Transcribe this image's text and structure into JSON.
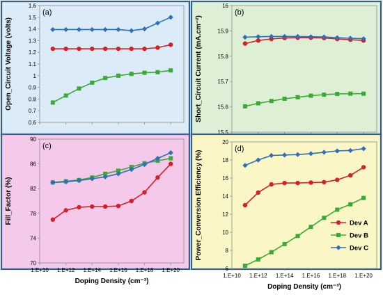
{
  "colors": {
    "dev_a": "#d42027",
    "dev_b": "#3aaa35",
    "dev_c": "#2e6fb7",
    "frame": "#2f5f8a"
  },
  "chart_data": [
    {
      "type": "line",
      "panel_label": "(a)",
      "ylabel": "Open_Circuit Voltage (volts)",
      "xlabel": "",
      "ylim": [
        0.6,
        1.6
      ],
      "ticks": [
        "0.6",
        "0.7",
        "0.8",
        "0.9",
        "1",
        "1.1",
        "1.2",
        "1.3",
        "1.4",
        "1.5",
        "1.6"
      ],
      "background": "#dcebf8",
      "series": [
        {
          "name": "Dev A",
          "x": [
            100000000000.0,
            1000000000000.0,
            10000000000000.0,
            100000000000000.0,
            1000000000000000.0,
            1e+16,
            1e+17,
            1e+18,
            1e+19,
            1e+20
          ],
          "values": [
            1.23,
            1.23,
            1.23,
            1.23,
            1.23,
            1.23,
            1.23,
            1.23,
            1.24,
            1.265
          ]
        },
        {
          "name": "Dev B",
          "x": [
            100000000000.0,
            1000000000000.0,
            10000000000000.0,
            100000000000000.0,
            1000000000000000.0,
            1e+16,
            1e+17,
            1e+18,
            1e+19,
            1e+20
          ],
          "values": [
            0.77,
            0.83,
            0.89,
            0.94,
            0.98,
            1.0,
            1.015,
            1.025,
            1.03,
            1.045
          ]
        },
        {
          "name": "Dev C",
          "x": [
            100000000000.0,
            1000000000000.0,
            10000000000000.0,
            100000000000000.0,
            1000000000000000.0,
            1e+16,
            1e+17,
            1e+18,
            1e+19,
            1e+20
          ],
          "values": [
            1.395,
            1.395,
            1.395,
            1.395,
            1.395,
            1.395,
            1.385,
            1.4,
            1.45,
            1.5
          ]
        }
      ]
    },
    {
      "type": "line",
      "panel_label": "(b)",
      "ylabel": "Short_Circuit Current (mA.cm⁻²)",
      "xlabel": "",
      "ylim": [
        15.5,
        16.0
      ],
      "ticks": [
        "15.5",
        "15.6",
        "15.7",
        "15.8",
        "15.9",
        "16"
      ],
      "background": "#ddf0d6",
      "series": [
        {
          "name": "Dev A",
          "x": [
            100000000000.0,
            1000000000000.0,
            10000000000000.0,
            100000000000000.0,
            1000000000000000.0,
            1e+16,
            1e+17,
            1e+18,
            1e+19,
            1e+20
          ],
          "values": [
            15.85,
            15.862,
            15.868,
            15.872,
            15.873,
            15.873,
            15.872,
            15.868,
            15.865,
            15.862
          ]
        },
        {
          "name": "Dev B",
          "x": [
            100000000000.0,
            1000000000000.0,
            10000000000000.0,
            100000000000000.0,
            1000000000000000.0,
            1e+16,
            1e+17,
            1e+18,
            1e+19,
            1e+20
          ],
          "values": [
            15.602,
            15.614,
            15.623,
            15.632,
            15.638,
            15.644,
            15.648,
            15.651,
            15.652,
            15.652
          ]
        },
        {
          "name": "Dev C",
          "x": [
            100000000000.0,
            1000000000000.0,
            10000000000000.0,
            100000000000000.0,
            1000000000000000.0,
            1e+16,
            1e+17,
            1e+18,
            1e+19,
            1e+20
          ],
          "values": [
            15.875,
            15.877,
            15.878,
            15.878,
            15.878,
            15.877,
            15.876,
            15.873,
            15.871,
            15.869
          ]
        }
      ]
    },
    {
      "type": "line",
      "panel_label": "(c)",
      "ylabel": "Fill_Factor (%)",
      "xlabel": "Doping Density (cm⁻³)",
      "ylim": [
        70,
        90
      ],
      "ticks": [
        "70",
        "74",
        "78",
        "82",
        "86",
        "90"
      ],
      "background": "#f4c9e9",
      "series": [
        {
          "name": "Dev A",
          "x": [
            100000000000.0,
            1000000000000.0,
            10000000000000.0,
            100000000000000.0,
            1000000000000000.0,
            1e+16,
            1e+17,
            1e+18,
            1e+19,
            1e+20
          ],
          "values": [
            77.0,
            78.5,
            79.0,
            79.1,
            79.1,
            79.2,
            80.0,
            81.4,
            83.8,
            86.0
          ]
        },
        {
          "name": "Dev B",
          "x": [
            100000000000.0,
            1000000000000.0,
            10000000000000.0,
            100000000000000.0,
            1000000000000000.0,
            1e+16,
            1e+17,
            1e+18,
            1e+19,
            1e+20
          ],
          "values": [
            83.0,
            83.2,
            83.4,
            83.8,
            84.4,
            84.9,
            85.5,
            86.1,
            86.5,
            86.9
          ]
        },
        {
          "name": "Dev C",
          "x": [
            100000000000.0,
            1000000000000.0,
            10000000000000.0,
            100000000000000.0,
            1000000000000000.0,
            1e+16,
            1e+17,
            1e+18,
            1e+19,
            1e+20
          ],
          "values": [
            83.0,
            83.1,
            83.3,
            83.6,
            83.9,
            84.4,
            85.1,
            85.9,
            86.9,
            87.8
          ]
        }
      ]
    },
    {
      "type": "line",
      "panel_label": "(d)",
      "ylabel": "Power_Conversion Efficiency (%)",
      "xlabel": "Doping Density (cm⁻³)",
      "ylim": [
        6,
        20
      ],
      "ticks": [
        "6",
        "8",
        "10",
        "12",
        "14",
        "16",
        "18",
        "20"
      ],
      "background": "#fbf6c6",
      "legend_position": "bottom-right",
      "series": [
        {
          "name": "Dev A",
          "x": [
            100000000000.0,
            1000000000000.0,
            10000000000000.0,
            100000000000000.0,
            1000000000000000.0,
            1e+16,
            1e+17,
            1e+18,
            1e+19,
            1e+20
          ],
          "values": [
            13.0,
            14.4,
            15.3,
            15.45,
            15.45,
            15.5,
            15.55,
            15.8,
            16.3,
            17.2
          ]
        },
        {
          "name": "Dev B",
          "x": [
            100000000000.0,
            1000000000000.0,
            10000000000000.0,
            100000000000000.0,
            1000000000000000.0,
            1e+16,
            1e+17,
            1e+18,
            1e+19,
            1e+20
          ],
          "values": [
            6.3,
            7.0,
            7.8,
            8.7,
            9.6,
            10.6,
            11.6,
            12.5,
            13.1,
            13.8
          ]
        },
        {
          "name": "Dev C",
          "x": [
            100000000000.0,
            1000000000000.0,
            10000000000000.0,
            100000000000000.0,
            1000000000000000.0,
            1e+16,
            1e+17,
            1e+18,
            1e+19,
            1e+20
          ],
          "values": [
            17.4,
            18.0,
            18.5,
            18.55,
            18.6,
            18.7,
            18.85,
            19.0,
            19.05,
            19.25
          ]
        }
      ]
    }
  ],
  "x_axis": {
    "scale": "log",
    "xlim": [
      10000000000.0,
      1e+21
    ],
    "tick_values": [
      10000000000.0,
      1000000000000.0,
      100000000000000.0,
      1e+16,
      1e+18,
      1e+20
    ],
    "tick_labels": [
      "1.E+10",
      "1.E+12",
      "1.E+14",
      "1.E+16",
      "1.E+18",
      "1.E+20"
    ]
  }
}
